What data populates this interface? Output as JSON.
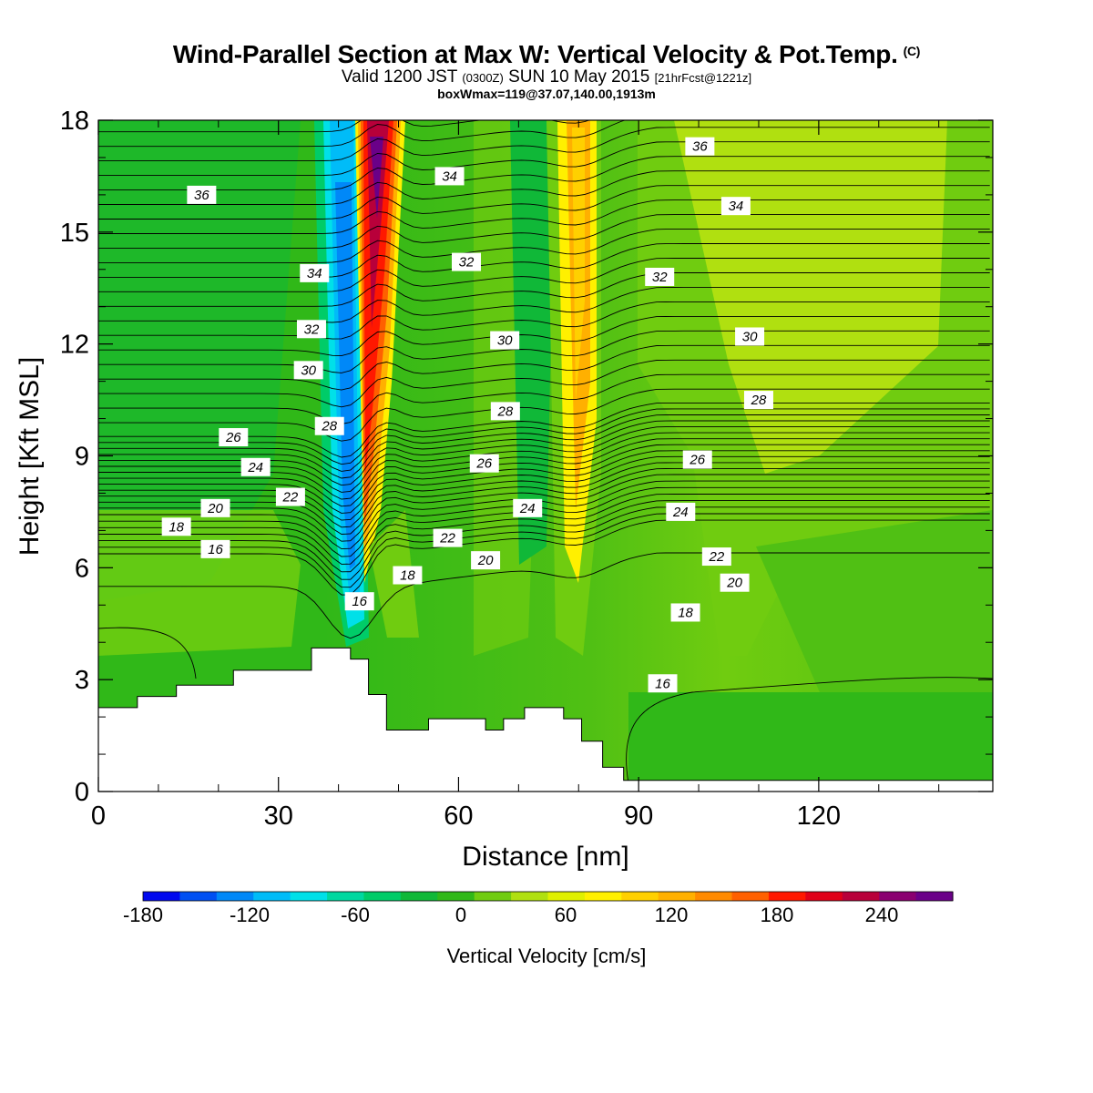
{
  "title": {
    "main": "Wind-Parallel Section at Max W: Vertical Velocity & Pot.Temp.",
    "copyright": "(C)",
    "valid_prefix": "Valid 1200 JST",
    "valid_utc": "(0300Z)",
    "valid_date": "SUN 10 May 2015",
    "forecast": "[21hrFcst@1221z]",
    "box": "boxWmax=119@37.07,140.00,1913m"
  },
  "colorbar": {
    "label": "Vertical Velocity [cm/s]",
    "ticks": [
      "-180",
      "-120",
      "-60",
      "0",
      "60",
      "120",
      "180",
      "240"
    ],
    "colors": [
      "#0008ee",
      "#0050f2",
      "#0088f8",
      "#00bcf8",
      "#00e0e8",
      "#00d8a0",
      "#00cc68",
      "#10b838",
      "#30b818",
      "#70cc10",
      "#b0e010",
      "#e0f000",
      "#fff000",
      "#ffd000",
      "#ffb000",
      "#ff8a00",
      "#ff6000",
      "#ff1800",
      "#e00018",
      "#b8003a",
      "#8a0070",
      "#6a0088"
    ]
  },
  "chart_data": {
    "type": "heatmap",
    "xlabel": "Distance [nm]",
    "ylabel": "Height [Kft MSL]",
    "xlim": [
      0,
      149
    ],
    "ylim": [
      0,
      18
    ],
    "xticks": [
      0,
      30,
      60,
      90,
      120
    ],
    "yticks": [
      0,
      3,
      6,
      9,
      12,
      15,
      18
    ],
    "field": "Vertical Velocity [cm/s]",
    "contour_field": "Potential Temperature",
    "theta_labels": [
      {
        "v": "36",
        "x": 17.2,
        "y": 16.0
      },
      {
        "v": "34",
        "x": 58.5,
        "y": 16.5
      },
      {
        "v": "36",
        "x": 100.2,
        "y": 17.3
      },
      {
        "v": "34",
        "x": 106.2,
        "y": 15.7
      },
      {
        "v": "34",
        "x": 36.0,
        "y": 13.9
      },
      {
        "v": "32",
        "x": 61.3,
        "y": 14.2
      },
      {
        "v": "32",
        "x": 93.5,
        "y": 13.8
      },
      {
        "v": "32",
        "x": 35.5,
        "y": 12.4
      },
      {
        "v": "30",
        "x": 67.7,
        "y": 12.1
      },
      {
        "v": "30",
        "x": 108.5,
        "y": 12.2
      },
      {
        "v": "30",
        "x": 35.0,
        "y": 11.3
      },
      {
        "v": "28",
        "x": 67.8,
        "y": 10.2
      },
      {
        "v": "28",
        "x": 110.0,
        "y": 10.5
      },
      {
        "v": "28",
        "x": 38.5,
        "y": 9.8
      },
      {
        "v": "26",
        "x": 22.5,
        "y": 9.5
      },
      {
        "v": "26",
        "x": 64.3,
        "y": 8.8
      },
      {
        "v": "26",
        "x": 99.8,
        "y": 8.9
      },
      {
        "v": "24",
        "x": 26.2,
        "y": 8.7
      },
      {
        "v": "24",
        "x": 71.5,
        "y": 7.6
      },
      {
        "v": "24",
        "x": 97.0,
        "y": 7.5
      },
      {
        "v": "22",
        "x": 32.0,
        "y": 7.9
      },
      {
        "v": "22",
        "x": 58.2,
        "y": 6.8
      },
      {
        "v": "22",
        "x": 103.0,
        "y": 6.3
      },
      {
        "v": "20",
        "x": 19.5,
        "y": 7.6
      },
      {
        "v": "20",
        "x": 64.5,
        "y": 6.2
      },
      {
        "v": "20",
        "x": 106.0,
        "y": 5.6
      },
      {
        "v": "18",
        "x": 13.0,
        "y": 7.1
      },
      {
        "v": "18",
        "x": 51.5,
        "y": 5.8
      },
      {
        "v": "18",
        "x": 97.8,
        "y": 4.8
      },
      {
        "v": "16",
        "x": 19.5,
        "y": 6.5
      },
      {
        "v": "16",
        "x": 43.5,
        "y": 5.1
      },
      {
        "v": "16",
        "x": 94.0,
        "y": 2.9
      }
    ],
    "terrain": [
      [
        0,
        2.25
      ],
      [
        6.5,
        2.25
      ],
      [
        6.5,
        2.55
      ],
      [
        13,
        2.55
      ],
      [
        13,
        2.85
      ],
      [
        22.5,
        2.85
      ],
      [
        22.5,
        3.25
      ],
      [
        35.5,
        3.25
      ],
      [
        35.5,
        3.85
      ],
      [
        42,
        3.85
      ],
      [
        42,
        3.55
      ],
      [
        45,
        3.55
      ],
      [
        45,
        2.6
      ],
      [
        48,
        2.6
      ],
      [
        48,
        1.65
      ],
      [
        55,
        1.65
      ],
      [
        55,
        1.95
      ],
      [
        64.5,
        1.95
      ],
      [
        64.5,
        1.65
      ],
      [
        67.5,
        1.65
      ],
      [
        67.5,
        1.95
      ],
      [
        71,
        1.95
      ],
      [
        71,
        2.25
      ],
      [
        77.5,
        2.25
      ],
      [
        77.5,
        1.95
      ],
      [
        80.5,
        1.95
      ],
      [
        80.5,
        1.35
      ],
      [
        84,
        1.35
      ],
      [
        84,
        0.65
      ],
      [
        87.5,
        0.65
      ],
      [
        87.5,
        0.3
      ],
      [
        149,
        0.3
      ]
    ]
  }
}
